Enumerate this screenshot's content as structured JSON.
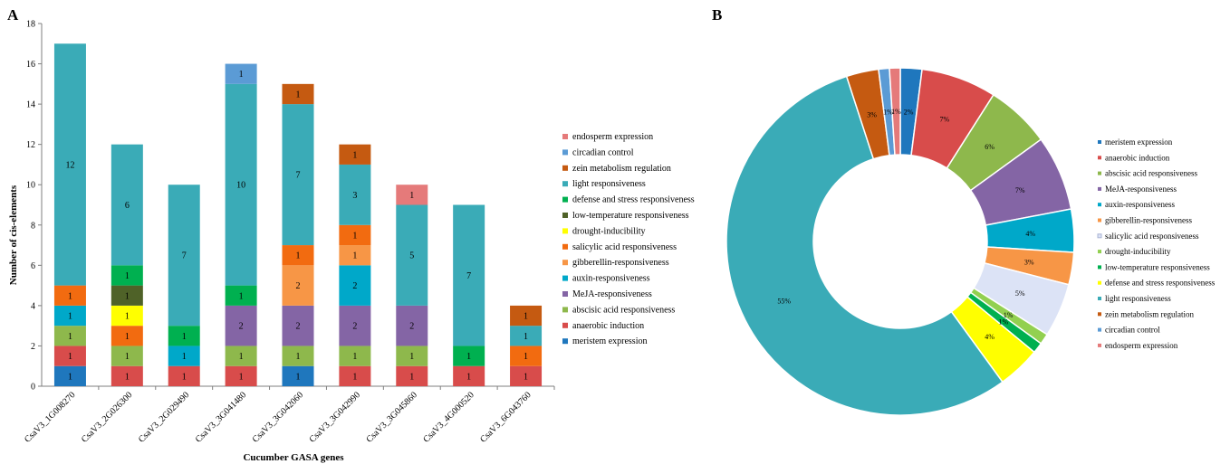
{
  "panel_labels": {
    "a": "A",
    "b": "B"
  },
  "chart_data": [
    {
      "type": "bar",
      "stacked": true,
      "xlabel": "Cucumber GASA genes",
      "ylabel": "Number of cis-elements",
      "ylim": [
        0,
        18
      ],
      "yticks": [
        0,
        2,
        4,
        6,
        8,
        10,
        12,
        14,
        16,
        18
      ],
      "grid": false,
      "legend_position": "right",
      "categories": [
        "CsaV3_1G008270",
        "CsaV3_2G026300",
        "CsaV3_2G029490",
        "CsaV3_3G041480",
        "CsaV3_3G042060",
        "CsaV3_3G042990",
        "CsaV3_3G045860",
        "CsaV3_4G000520",
        "CsaV3_6G043760"
      ],
      "series": [
        {
          "name": "meristem expression",
          "color": "#1f77bd",
          "values": [
            1,
            0,
            0,
            0,
            1,
            0,
            0,
            0,
            0
          ]
        },
        {
          "name": "anaerobic induction",
          "color": "#d84c4b",
          "values": [
            1,
            1,
            1,
            1,
            0,
            1,
            1,
            1,
            1
          ]
        },
        {
          "name": "abscisic acid responsiveness",
          "color": "#8eb84c",
          "values": [
            1,
            1,
            0,
            1,
            1,
            1,
            1,
            0,
            0
          ]
        },
        {
          "name": "MeJA-responsiveness",
          "color": "#8465a5",
          "values": [
            0,
            0,
            0,
            2,
            2,
            2,
            2,
            0,
            0
          ]
        },
        {
          "name": "auxin-responsiveness",
          "color": "#00a8c9",
          "values": [
            1,
            0,
            1,
            0,
            0,
            2,
            0,
            0,
            0
          ]
        },
        {
          "name": "gibberellin-responsiveness",
          "color": "#f79646",
          "values": [
            0,
            0,
            0,
            0,
            2,
            1,
            0,
            0,
            0
          ]
        },
        {
          "name": "salicylic acid responsiveness",
          "color": "#f26b10",
          "values": [
            1,
            1,
            0,
            0,
            1,
            1,
            0,
            0,
            1
          ]
        },
        {
          "name": "drought-inducibility",
          "color": "#ffff00",
          "values": [
            0,
            1,
            0,
            0,
            0,
            0,
            0,
            0,
            0
          ]
        },
        {
          "name": "low-temperature responsiveness",
          "color": "#4f6228",
          "values": [
            0,
            1,
            0,
            0,
            0,
            0,
            0,
            0,
            0
          ]
        },
        {
          "name": "defense and stress responsiveness",
          "color": "#00b050",
          "values": [
            0,
            1,
            1,
            1,
            0,
            0,
            0,
            1,
            0
          ]
        },
        {
          "name": "light responsiveness",
          "color": "#3aabb7",
          "values": [
            12,
            6,
            7,
            10,
            7,
            3,
            5,
            7,
            1
          ]
        },
        {
          "name": "zein metabolism regulation",
          "color": "#c55a11",
          "values": [
            0,
            0,
            0,
            0,
            1,
            1,
            0,
            0,
            1
          ]
        },
        {
          "name": "circadian control",
          "color": "#5b9bd5",
          "values": [
            0,
            0,
            0,
            1,
            0,
            0,
            0,
            0,
            0
          ]
        },
        {
          "name": "endosperm expression",
          "color": "#e57a7a",
          "values": [
            0,
            0,
            0,
            0,
            0,
            0,
            1,
            0,
            0
          ]
        }
      ]
    },
    {
      "type": "pie",
      "donut": true,
      "legend_position": "right",
      "slices": [
        {
          "name": "meristem expression",
          "value": 2,
          "label": "2%",
          "color": "#1f77bd"
        },
        {
          "name": "anaerobic induction",
          "value": 7,
          "label": "7%",
          "color": "#d84c4b"
        },
        {
          "name": "abscisic acid responsiveness",
          "value": 6,
          "label": "6%",
          "color": "#8eb84c"
        },
        {
          "name": "MeJA-responsiveness",
          "value": 7,
          "label": "7%",
          "color": "#8465a5"
        },
        {
          "name": "auxin-responsiveness",
          "value": 4,
          "label": "4%",
          "color": "#00a8c9"
        },
        {
          "name": "gibberellin-responsiveness",
          "value": 3,
          "label": "3%",
          "color": "#f79646"
        },
        {
          "name": "salicylic acid responsiveness",
          "value": 5,
          "label": "5%",
          "color": "#dce3f6"
        },
        {
          "name": "drought-inducibility",
          "value": 1,
          "label": "1%",
          "color": "#92d050"
        },
        {
          "name": "low-temperature responsiveness",
          "value": 1,
          "label": "1%",
          "color": "#00b050"
        },
        {
          "name": "defense and stress responsiveness",
          "value": 4,
          "label": "4%",
          "color": "#ffff00"
        },
        {
          "name": "light responsiveness",
          "value": 55,
          "label": "55%",
          "color": "#3aabb7"
        },
        {
          "name": "zein metabolism regulation",
          "value": 3,
          "label": "3%",
          "color": "#c55a11"
        },
        {
          "name": "circadian control",
          "value": 1,
          "label": "1%",
          "color": "#5b9bd5"
        },
        {
          "name": "endosperm expression",
          "value": 1,
          "label": "1%",
          "color": "#e57a7a"
        }
      ]
    }
  ]
}
